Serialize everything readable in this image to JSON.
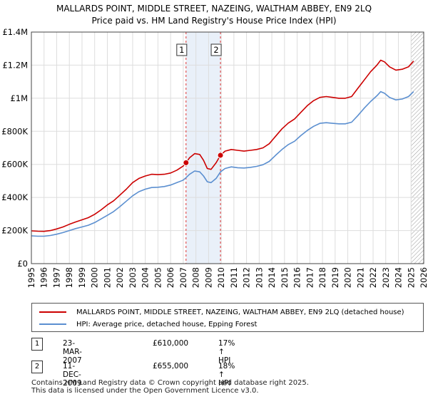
{
  "chart_data": {
    "type": "line",
    "title": "MALLARDS POINT, MIDDLE STREET, NAZEING, WALTHAM ABBEY, EN9 2LQ",
    "subtitle": "Price paid vs. HM Land Registry's House Price Index (HPI)",
    "x_range": [
      1995,
      2026
    ],
    "ylim": [
      0,
      1400000
    ],
    "x_ticks": [
      "1995",
      "1996",
      "1997",
      "1998",
      "1999",
      "2000",
      "2001",
      "2002",
      "2003",
      "2004",
      "2005",
      "2006",
      "2007",
      "2008",
      "2009",
      "2010",
      "2011",
      "2012",
      "2013",
      "2014",
      "2015",
      "2016",
      "2017",
      "2018",
      "2019",
      "2020",
      "2021",
      "2022",
      "2023",
      "2024",
      "2025",
      "2026"
    ],
    "y_ticks": [
      {
        "value": 0,
        "label": "£0"
      },
      {
        "value": 200000,
        "label": "£200K"
      },
      {
        "value": 400000,
        "label": "£400K"
      },
      {
        "value": 600000,
        "label": "£600K"
      },
      {
        "value": 800000,
        "label": "£800K"
      },
      {
        "value": 1000000,
        "label": "£1M"
      },
      {
        "value": 1200000,
        "label": "£1.2M"
      },
      {
        "value": 1400000,
        "label": "£1.4M"
      }
    ],
    "grid": true,
    "series": [
      {
        "name": "MALLARDS POINT, MIDDLE STREET, NAZEING, WALTHAM ABBEY, EN9 2LQ (detached house)",
        "color": "#cc0000",
        "points": [
          [
            1995.0,
            198000
          ],
          [
            1995.5,
            196000
          ],
          [
            1996.0,
            195000
          ],
          [
            1996.5,
            200000
          ],
          [
            1997.0,
            210000
          ],
          [
            1997.5,
            222000
          ],
          [
            1998.0,
            238000
          ],
          [
            1998.5,
            252000
          ],
          [
            1999.0,
            265000
          ],
          [
            1999.5,
            278000
          ],
          [
            2000.0,
            298000
          ],
          [
            2000.5,
            325000
          ],
          [
            2001.0,
            355000
          ],
          [
            2001.5,
            380000
          ],
          [
            2002.0,
            415000
          ],
          [
            2002.5,
            450000
          ],
          [
            2003.0,
            490000
          ],
          [
            2003.5,
            515000
          ],
          [
            2004.0,
            530000
          ],
          [
            2004.5,
            540000
          ],
          [
            2005.0,
            538000
          ],
          [
            2005.5,
            540000
          ],
          [
            2006.0,
            548000
          ],
          [
            2006.5,
            565000
          ],
          [
            2007.0,
            590000
          ],
          [
            2007.22,
            610000
          ],
          [
            2007.5,
            640000
          ],
          [
            2007.9,
            665000
          ],
          [
            2008.3,
            660000
          ],
          [
            2008.6,
            625000
          ],
          [
            2008.9,
            575000
          ],
          [
            2009.2,
            570000
          ],
          [
            2009.6,
            610000
          ],
          [
            2009.94,
            655000
          ],
          [
            2010.3,
            680000
          ],
          [
            2010.8,
            690000
          ],
          [
            2011.3,
            685000
          ],
          [
            2011.8,
            680000
          ],
          [
            2012.3,
            685000
          ],
          [
            2012.8,
            690000
          ],
          [
            2013.3,
            700000
          ],
          [
            2013.8,
            725000
          ],
          [
            2014.3,
            770000
          ],
          [
            2014.8,
            815000
          ],
          [
            2015.3,
            850000
          ],
          [
            2015.8,
            875000
          ],
          [
            2016.3,
            915000
          ],
          [
            2016.8,
            955000
          ],
          [
            2017.3,
            985000
          ],
          [
            2017.8,
            1005000
          ],
          [
            2018.3,
            1010000
          ],
          [
            2018.8,
            1005000
          ],
          [
            2019.3,
            1000000
          ],
          [
            2019.8,
            1000000
          ],
          [
            2020.3,
            1010000
          ],
          [
            2020.8,
            1060000
          ],
          [
            2021.3,
            1110000
          ],
          [
            2021.8,
            1160000
          ],
          [
            2022.3,
            1200000
          ],
          [
            2022.6,
            1230000
          ],
          [
            2022.9,
            1220000
          ],
          [
            2023.3,
            1190000
          ],
          [
            2023.8,
            1170000
          ],
          [
            2024.3,
            1175000
          ],
          [
            2024.8,
            1190000
          ],
          [
            2025.2,
            1225000
          ]
        ]
      },
      {
        "name": "HPI: Average price, detached house, Epping Forest",
        "color": "#5b8fd0",
        "points": [
          [
            1995.0,
            168000
          ],
          [
            1995.5,
            166000
          ],
          [
            1996.0,
            166000
          ],
          [
            1996.5,
            170000
          ],
          [
            1997.0,
            178000
          ],
          [
            1997.5,
            188000
          ],
          [
            1998.0,
            200000
          ],
          [
            1998.5,
            212000
          ],
          [
            1999.0,
            222000
          ],
          [
            1999.5,
            232000
          ],
          [
            2000.0,
            248000
          ],
          [
            2000.5,
            270000
          ],
          [
            2001.0,
            292000
          ],
          [
            2001.5,
            315000
          ],
          [
            2002.0,
            345000
          ],
          [
            2002.5,
            378000
          ],
          [
            2003.0,
            410000
          ],
          [
            2003.5,
            435000
          ],
          [
            2004.0,
            450000
          ],
          [
            2004.5,
            460000
          ],
          [
            2005.0,
            462000
          ],
          [
            2005.5,
            466000
          ],
          [
            2006.0,
            475000
          ],
          [
            2006.5,
            490000
          ],
          [
            2007.0,
            505000
          ],
          [
            2007.22,
            520000
          ],
          [
            2007.5,
            540000
          ],
          [
            2007.9,
            560000
          ],
          [
            2008.3,
            555000
          ],
          [
            2008.6,
            530000
          ],
          [
            2008.9,
            495000
          ],
          [
            2009.2,
            490000
          ],
          [
            2009.6,
            515000
          ],
          [
            2009.94,
            555000
          ],
          [
            2010.3,
            575000
          ],
          [
            2010.8,
            585000
          ],
          [
            2011.3,
            580000
          ],
          [
            2011.8,
            578000
          ],
          [
            2012.3,
            582000
          ],
          [
            2012.8,
            588000
          ],
          [
            2013.3,
            598000
          ],
          [
            2013.8,
            618000
          ],
          [
            2014.3,
            655000
          ],
          [
            2014.8,
            690000
          ],
          [
            2015.3,
            720000
          ],
          [
            2015.8,
            740000
          ],
          [
            2016.3,
            775000
          ],
          [
            2016.8,
            805000
          ],
          [
            2017.3,
            830000
          ],
          [
            2017.8,
            848000
          ],
          [
            2018.3,
            852000
          ],
          [
            2018.8,
            848000
          ],
          [
            2019.3,
            845000
          ],
          [
            2019.8,
            845000
          ],
          [
            2020.3,
            855000
          ],
          [
            2020.8,
            895000
          ],
          [
            2021.3,
            940000
          ],
          [
            2021.8,
            980000
          ],
          [
            2022.3,
            1015000
          ],
          [
            2022.6,
            1040000
          ],
          [
            2022.9,
            1030000
          ],
          [
            2023.3,
            1005000
          ],
          [
            2023.8,
            990000
          ],
          [
            2024.3,
            995000
          ],
          [
            2024.8,
            1010000
          ],
          [
            2025.2,
            1040000
          ]
        ]
      }
    ],
    "annotations": [
      {
        "id": "1",
        "x": 2007.22,
        "y": 610000
      },
      {
        "id": "2",
        "x": 2009.94,
        "y": 655000
      }
    ],
    "future_hatch_from": 2025.0
  },
  "legend": {
    "property_label": "MALLARDS POINT, MIDDLE STREET, NAZEING, WALTHAM ABBEY, EN9 2LQ (detached house)",
    "hpi_label": "HPI: Average price, detached house, Epping Forest"
  },
  "transactions": [
    {
      "num": "1",
      "date": "23-MAR-2007",
      "price": "£610,000",
      "hpi": "17% ↑ HPI"
    },
    {
      "num": "2",
      "date": "11-DEC-2009",
      "price": "£655,000",
      "hpi": "18% ↑ HPI"
    }
  ],
  "footer": {
    "line1": "Contains HM Land Registry data © Crown copyright and database right 2025.",
    "line2": "This data is licensed under the Open Government Licence v3.0."
  },
  "colors": {
    "property": "#cc0000",
    "hpi": "#5b8fd0",
    "grid": "#dddddd",
    "marker_band": "#dbe6f5"
  }
}
